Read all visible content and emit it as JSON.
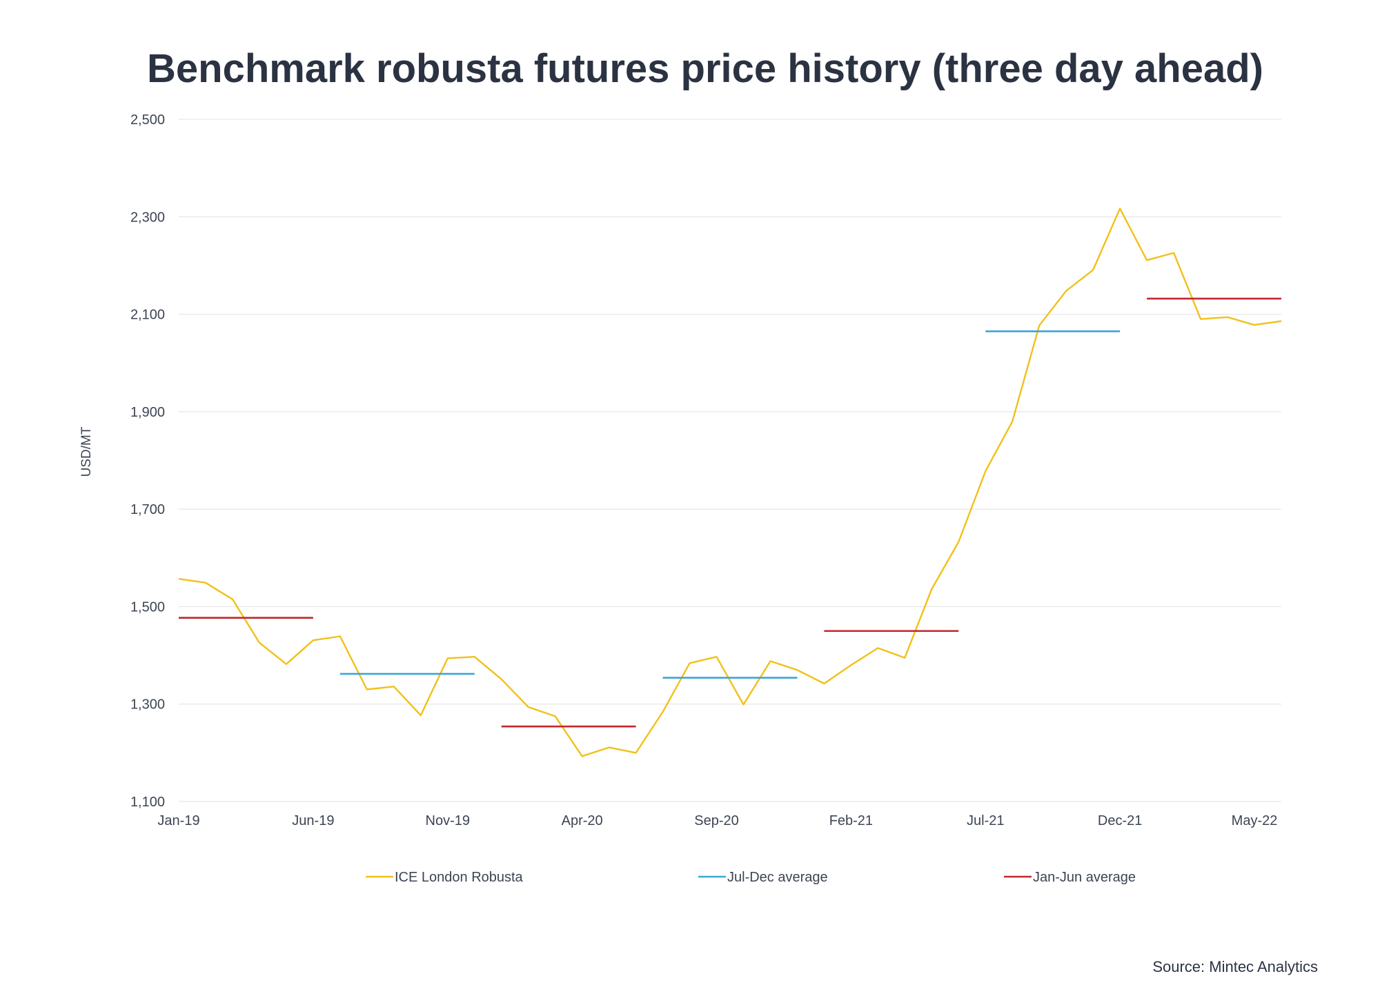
{
  "chart_data": {
    "type": "line",
    "title": "Benchmark robusta futures price history (three day ahead)",
    "ylabel": "USD/MT",
    "xlabel": "",
    "ylim": [
      1100,
      2500
    ],
    "yticks": [
      1100,
      1300,
      1500,
      1700,
      1900,
      2100,
      2300,
      2500
    ],
    "ytick_labels": [
      "1,100",
      "1,300",
      "1,500",
      "1,700",
      "1,900",
      "2,100",
      "2,300",
      "2,500"
    ],
    "xtick_labels": [
      "Jan-19",
      "Jun-19",
      "Nov-19",
      "Apr-20",
      "Sep-20",
      "Feb-21",
      "Jul-21",
      "Dec-21",
      "May-22"
    ],
    "grid": true,
    "legend_position": "bottom",
    "x": [
      "Jan-19",
      "Feb-19",
      "Mar-19",
      "Apr-19",
      "May-19",
      "Jun-19",
      "Jul-19",
      "Aug-19",
      "Sep-19",
      "Oct-19",
      "Nov-19",
      "Dec-19",
      "Jan-20",
      "Feb-20",
      "Mar-20",
      "Apr-20",
      "May-20",
      "Jun-20",
      "Jul-20",
      "Aug-20",
      "Sep-20",
      "Oct-20",
      "Nov-20",
      "Dec-20",
      "Jan-21",
      "Feb-21",
      "Mar-21",
      "Apr-21",
      "May-21",
      "Jun-21",
      "Jul-21",
      "Aug-21",
      "Sep-21",
      "Oct-21",
      "Nov-21",
      "Dec-21",
      "Jan-22",
      "Feb-22",
      "Mar-22",
      "Apr-22",
      "May-22",
      "Jun-22"
    ],
    "series": [
      {
        "name": "ICE London Robusta",
        "color": "#f2c018",
        "style": "line",
        "values": [
          1557,
          1549,
          1515,
          1426,
          1382,
          1431,
          1439,
          1330,
          1336,
          1277,
          1394,
          1397,
          1351,
          1294,
          1275,
          1193,
          1211,
          1200,
          1284,
          1384,
          1397,
          1299,
          1388,
          1370,
          1342,
          1380,
          1415,
          1395,
          1536,
          1633,
          1778,
          1880,
          2077,
          2148,
          2191,
          2317,
          2211,
          2226,
          2090,
          2094,
          2078,
          2086
        ]
      },
      {
        "name": "Jul-Dec average",
        "color": "#3aa6d3",
        "style": "segments",
        "segments": [
          {
            "start": "Jul-19",
            "end": "Dec-19",
            "value": 1362
          },
          {
            "start": "Jul-20",
            "end": "Dec-20",
            "value": 1354
          },
          {
            "start": "Jul-21",
            "end": "Dec-21",
            "value": 2065
          }
        ]
      },
      {
        "name": "Jan-Jun average",
        "color": "#c0272d",
        "style": "segments",
        "segments": [
          {
            "start": "Jan-19",
            "end": "Jun-19",
            "value": 1477
          },
          {
            "start": "Jan-20",
            "end": "Jun-20",
            "value": 1254
          },
          {
            "start": "Jan-21",
            "end": "Jun-21",
            "value": 1450
          },
          {
            "start": "Jan-22",
            "end": "Jun-22",
            "value": 2132
          }
        ]
      }
    ]
  },
  "source": "Source: Mintec Analytics"
}
